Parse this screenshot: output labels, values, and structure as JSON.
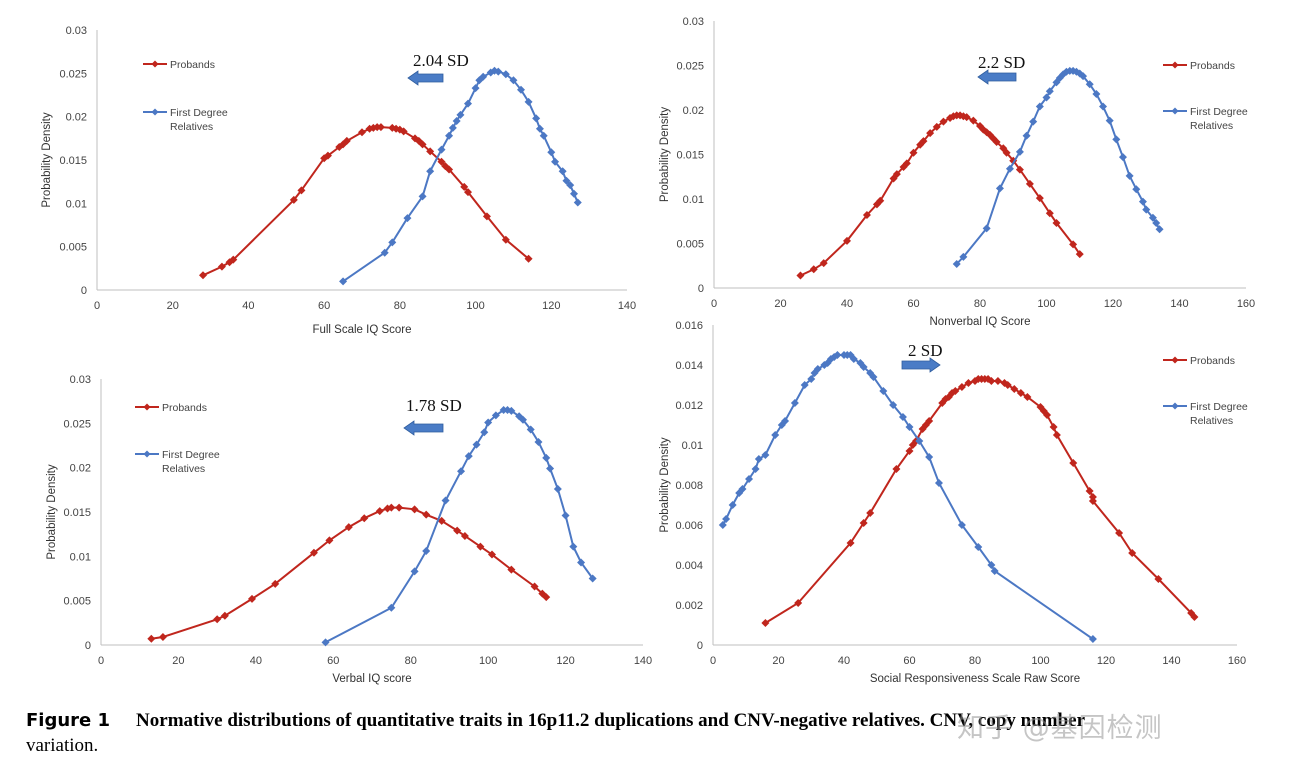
{
  "chart_data": [
    {
      "type": "line",
      "xlabel": "Full Scale IQ Score",
      "ylabel": "Probability Density",
      "xlim": [
        0,
        140
      ],
      "ylim": [
        0,
        0.03
      ],
      "xticks": [
        "0",
        "20",
        "40",
        "60",
        "80",
        "100",
        "120",
        "140"
      ],
      "yticks": [
        "0",
        "0.005",
        "0.01",
        "0.015",
        "0.02",
        "0.025",
        "0.03"
      ],
      "legend": {
        "position": "upper-left",
        "entries": [
          "Probands",
          "First Degree\nRelatives"
        ]
      },
      "annotation": {
        "text": "2.04 SD",
        "arrow": "left"
      },
      "series": [
        {
          "name": "Probands",
          "color": "#c0261d",
          "x": [
            28,
            33,
            35,
            36,
            52,
            54,
            60,
            61,
            64,
            65,
            66,
            70,
            72,
            73,
            74,
            75,
            78,
            79,
            80,
            81,
            84,
            85,
            86,
            88,
            91,
            92,
            93,
            97,
            98,
            103,
            108,
            114
          ],
          "y": [
            0.0017,
            0.0027,
            0.0032,
            0.0035,
            0.0104,
            0.0115,
            0.0152,
            0.0155,
            0.0165,
            0.0168,
            0.0172,
            0.0182,
            0.0186,
            0.0187,
            0.0188,
            0.0188,
            0.0187,
            0.0186,
            0.0185,
            0.0183,
            0.0175,
            0.0172,
            0.0168,
            0.016,
            0.0148,
            0.0143,
            0.0139,
            0.0119,
            0.0113,
            0.0085,
            0.0058,
            0.0036
          ]
        },
        {
          "name": "First Degree\nRelatives",
          "color": "#4c78c4",
          "x": [
            65,
            76,
            78,
            82,
            86,
            88,
            91,
            93,
            94,
            95,
            96,
            98,
            100,
            101,
            102,
            104,
            105,
            106,
            108,
            110,
            112,
            114,
            116,
            117,
            118,
            120,
            121,
            123,
            124,
            125,
            126,
            127
          ],
          "y": [
            0.001,
            0.0043,
            0.0055,
            0.0083,
            0.0108,
            0.0137,
            0.0162,
            0.0178,
            0.0187,
            0.0195,
            0.0202,
            0.0215,
            0.0233,
            0.0242,
            0.0246,
            0.0251,
            0.0253,
            0.0252,
            0.0249,
            0.0242,
            0.0231,
            0.0217,
            0.0198,
            0.0186,
            0.0178,
            0.0159,
            0.0148,
            0.0137,
            0.0126,
            0.0121,
            0.0111,
            0.0101
          ]
        }
      ]
    },
    {
      "type": "line",
      "xlabel": "Nonverbal IQ Score",
      "ylabel": "Probability Density",
      "xlim": [
        0,
        160
      ],
      "ylim": [
        0,
        0.03
      ],
      "xticks": [
        "0",
        "20",
        "40",
        "60",
        "80",
        "100",
        "120",
        "140",
        "160"
      ],
      "yticks": [
        "0",
        "0.005",
        "0.01",
        "0.015",
        "0.02",
        "0.025",
        "0.03"
      ],
      "legend": {
        "position": "upper-right",
        "entries": [
          "Probands",
          "First Degree\nRelatives"
        ]
      },
      "annotation": {
        "text": "2.2 SD",
        "arrow": "left"
      },
      "series": [
        {
          "name": "Probands",
          "color": "#c0261d",
          "x": [
            26,
            30,
            33,
            40,
            46,
            49,
            50,
            54,
            55,
            57,
            58,
            60,
            62,
            63,
            65,
            67,
            69,
            71,
            72,
            73,
            74,
            75,
            76,
            78,
            80,
            81,
            82,
            83,
            84,
            85,
            87,
            88,
            90,
            92,
            95,
            98,
            101,
            103,
            108,
            110
          ],
          "y": [
            0.0014,
            0.0021,
            0.0028,
            0.0053,
            0.0082,
            0.0094,
            0.0098,
            0.0123,
            0.0128,
            0.0136,
            0.014,
            0.0152,
            0.0161,
            0.0165,
            0.0174,
            0.0181,
            0.0187,
            0.0191,
            0.0193,
            0.0194,
            0.0194,
            0.0193,
            0.0192,
            0.0188,
            0.0182,
            0.0178,
            0.0175,
            0.0172,
            0.0168,
            0.0164,
            0.0157,
            0.0152,
            0.0143,
            0.0133,
            0.0117,
            0.0101,
            0.0084,
            0.0073,
            0.0049,
            0.0038
          ]
        },
        {
          "name": "First Degree\nRelatives",
          "color": "#4c78c4",
          "x": [
            73,
            75,
            82,
            86,
            89,
            92,
            94,
            96,
            98,
            100,
            101,
            103,
            104,
            105,
            106,
            107,
            108,
            109,
            110,
            111,
            113,
            115,
            117,
            119,
            121,
            123,
            125,
            127,
            129,
            130,
            132,
            133,
            134
          ],
          "y": [
            0.0027,
            0.0035,
            0.0067,
            0.0112,
            0.0134,
            0.0153,
            0.0171,
            0.0187,
            0.0204,
            0.0214,
            0.0221,
            0.0231,
            0.0236,
            0.024,
            0.0243,
            0.0244,
            0.0244,
            0.0243,
            0.0241,
            0.0238,
            0.0229,
            0.0218,
            0.0204,
            0.0188,
            0.0167,
            0.0147,
            0.0126,
            0.0111,
            0.0097,
            0.0088,
            0.0079,
            0.0073,
            0.0066
          ]
        }
      ]
    },
    {
      "type": "line",
      "xlabel": "Verbal IQ score",
      "ylabel": "Probability Density",
      "xlim": [
        0,
        140
      ],
      "ylim": [
        0,
        0.03
      ],
      "xticks": [
        "0",
        "20",
        "40",
        "60",
        "80",
        "100",
        "120",
        "140"
      ],
      "yticks": [
        "0",
        "0.005",
        "0.01",
        "0.015",
        "0.02",
        "0.025",
        "0.03"
      ],
      "legend": {
        "position": "upper-left",
        "entries": [
          "Probands",
          "First Degree\nRelatives"
        ]
      },
      "annotation": {
        "text": "1.78 SD",
        "arrow": "left"
      },
      "series": [
        {
          "name": "Probands",
          "color": "#c0261d",
          "x": [
            13,
            16,
            30,
            32,
            39,
            45,
            55,
            59,
            64,
            68,
            72,
            74,
            75,
            77,
            81,
            84,
            88,
            92,
            94,
            98,
            101,
            106,
            112,
            114,
            115
          ],
          "y": [
            0.0007,
            0.0009,
            0.0029,
            0.0033,
            0.0052,
            0.0069,
            0.0104,
            0.0118,
            0.0133,
            0.0143,
            0.0151,
            0.0154,
            0.0155,
            0.0155,
            0.0153,
            0.0147,
            0.014,
            0.0129,
            0.0123,
            0.0111,
            0.0102,
            0.0085,
            0.0066,
            0.0058,
            0.0054
          ]
        },
        {
          "name": "First Degree\nRelatives",
          "color": "#4c78c4",
          "x": [
            58,
            75,
            81,
            84,
            89,
            93,
            95,
            97,
            99,
            100,
            102,
            104,
            105,
            106,
            108,
            109,
            111,
            113,
            115,
            116,
            118,
            120,
            122,
            124,
            127
          ],
          "y": [
            0.0003,
            0.0042,
            0.0083,
            0.0106,
            0.0163,
            0.0196,
            0.0213,
            0.0226,
            0.024,
            0.0251,
            0.0259,
            0.0265,
            0.0265,
            0.0264,
            0.0258,
            0.0254,
            0.0243,
            0.0229,
            0.0211,
            0.0199,
            0.0176,
            0.0146,
            0.0111,
            0.0093,
            0.0075
          ]
        }
      ]
    },
    {
      "type": "line",
      "xlabel": "Social Responsiveness Scale Raw Score",
      "ylabel": "Probability Density",
      "xlim": [
        0,
        160
      ],
      "ylim": [
        0,
        0.016
      ],
      "xticks": [
        "0",
        "20",
        "40",
        "60",
        "80",
        "100",
        "120",
        "140",
        "160"
      ],
      "yticks": [
        "0",
        "0.002",
        "0.004",
        "0.006",
        "0.008",
        "0.01",
        "0.012",
        "0.014",
        "0.016"
      ],
      "legend": {
        "position": "upper-right",
        "entries": [
          "Probands",
          "First Degree\nRelatives"
        ]
      },
      "annotation": {
        "text": "2 SD",
        "arrow": "right"
      },
      "series": [
        {
          "name": "Probands",
          "color": "#c0261d",
          "x": [
            16,
            26,
            42,
            46,
            48,
            56,
            60,
            61,
            62,
            64,
            65,
            66,
            70,
            71,
            72,
            73,
            74,
            76,
            78,
            80,
            81,
            82,
            83,
            84,
            85,
            87,
            89,
            90,
            92,
            94,
            96,
            100,
            101,
            102,
            104,
            105,
            110,
            115,
            116,
            116,
            124,
            128,
            136,
            146,
            147
          ],
          "y": [
            0.0011,
            0.0021,
            0.0051,
            0.0061,
            0.0066,
            0.0088,
            0.0097,
            0.01,
            0.0102,
            0.0108,
            0.011,
            0.0112,
            0.0121,
            0.0123,
            0.0124,
            0.0126,
            0.0127,
            0.0129,
            0.0131,
            0.0132,
            0.0133,
            0.0133,
            0.0133,
            0.0133,
            0.0132,
            0.0132,
            0.0131,
            0.013,
            0.0128,
            0.0126,
            0.0124,
            0.0119,
            0.0117,
            0.0115,
            0.0109,
            0.0105,
            0.0091,
            0.0077,
            0.0074,
            0.0072,
            0.0056,
            0.0046,
            0.0033,
            0.0016,
            0.0014
          ]
        },
        {
          "name": "First Degree\nRelatives",
          "color": "#4c78c4",
          "x": [
            3,
            4,
            6,
            8,
            9,
            11,
            13,
            14,
            16,
            19,
            21,
            22,
            25,
            28,
            30,
            31,
            32,
            34,
            35,
            36,
            37,
            38,
            40,
            41,
            42,
            43,
            45,
            46,
            48,
            49,
            52,
            55,
            58,
            60,
            63,
            66,
            69,
            76,
            81,
            85,
            86,
            116
          ],
          "y": [
            0.006,
            0.0063,
            0.007,
            0.0076,
            0.0078,
            0.0083,
            0.0088,
            0.0093,
            0.0095,
            0.0105,
            0.011,
            0.0112,
            0.0121,
            0.013,
            0.0133,
            0.0136,
            0.0138,
            0.014,
            0.0141,
            0.0143,
            0.0144,
            0.0145,
            0.0145,
            0.0145,
            0.0145,
            0.0143,
            0.0141,
            0.0139,
            0.0136,
            0.0134,
            0.0127,
            0.012,
            0.0114,
            0.0109,
            0.0102,
            0.0094,
            0.0081,
            0.006,
            0.0049,
            0.004,
            0.0037,
            0.0003
          ]
        }
      ]
    }
  ],
  "caption": {
    "figure_label": "Figure 1",
    "title": "Normative distributions of quantitative traits in 16p11.2 duplications and CNV-negative relatives. CNV, copy number",
    "continuation": "variation."
  },
  "watermark": "知乎 @基因检测"
}
